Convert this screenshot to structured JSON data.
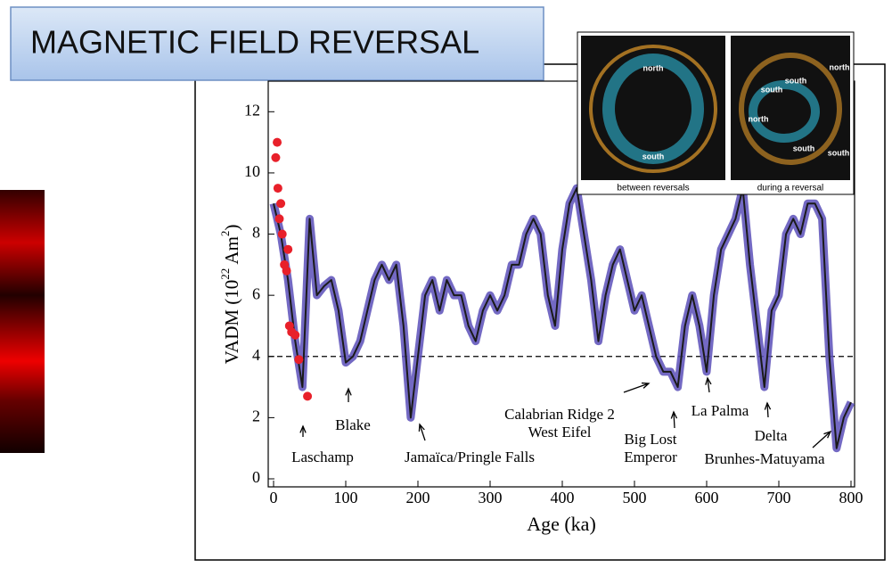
{
  "slide_title": "MAGNETIC FIELD REVERSAL",
  "inset": {
    "labels": [
      "north",
      "south",
      "north",
      "south",
      "south",
      "north",
      "south",
      "south"
    ],
    "captions": [
      "between reversals",
      "during a reversal"
    ]
  },
  "chart_data": {
    "type": "line",
    "x_label": "Age (ka)",
    "y_label": [
      "VADM (10",
      "22",
      " Am",
      "2",
      ")"
    ],
    "xlim": [
      0,
      800
    ],
    "ylim": [
      0,
      13
    ],
    "xticks": [
      0,
      100,
      200,
      300,
      400,
      500,
      600,
      700,
      800
    ],
    "yticks": [
      0,
      2,
      4,
      6,
      8,
      10,
      12
    ],
    "reference_line": 4,
    "x": [
      0,
      10,
      20,
      30,
      40,
      50,
      60,
      70,
      80,
      90,
      100,
      110,
      120,
      130,
      140,
      150,
      160,
      170,
      180,
      190,
      200,
      210,
      220,
      230,
      240,
      250,
      260,
      270,
      280,
      290,
      300,
      310,
      320,
      330,
      340,
      350,
      360,
      370,
      380,
      390,
      400,
      410,
      420,
      430,
      440,
      450,
      460,
      470,
      480,
      490,
      500,
      510,
      520,
      530,
      540,
      550,
      560,
      570,
      580,
      590,
      600,
      610,
      620,
      630,
      640,
      650,
      660,
      670,
      680,
      690,
      700,
      710,
      720,
      730,
      740,
      750,
      760,
      770,
      780,
      790,
      800
    ],
    "series": [
      {
        "color": "#1a1a1a",
        "band_color": "#5b4fb8",
        "values": [
          9,
          8,
          6.5,
          4.5,
          3,
          8.5,
          6,
          6.3,
          6.5,
          5.5,
          3.8,
          4,
          4.5,
          5.5,
          6.5,
          7,
          6.5,
          7,
          5,
          2,
          4,
          6,
          6.5,
          5.5,
          6.5,
          6,
          6,
          5,
          4.5,
          5.5,
          6,
          5.5,
          6,
          7,
          7,
          8,
          8.5,
          8,
          6,
          5,
          7.5,
          9,
          9.5,
          8,
          6.5,
          4.5,
          6,
          7,
          7.5,
          6.5,
          5.5,
          6,
          5,
          4,
          3.5,
          3.5,
          3,
          5,
          6,
          5,
          3.5,
          6,
          7.5,
          8,
          8.5,
          9.5,
          7,
          5,
          3,
          5.5,
          6,
          8,
          8.5,
          8,
          9,
          9,
          8.5,
          4,
          1,
          2,
          2.5
        ]
      }
    ],
    "points": {
      "type": "scatter",
      "color": "#e8202a",
      "x": [
        3,
        5,
        6,
        8,
        10,
        12,
        15,
        18,
        20,
        22,
        25,
        30,
        35,
        47
      ],
      "values": [
        10.5,
        11,
        9.5,
        8.5,
        9,
        8,
        7,
        6.8,
        7.5,
        5,
        4.8,
        4.7,
        3.9,
        2.7
      ]
    },
    "annotations": [
      [
        "Laschamp"
      ],
      [
        "Blake"
      ],
      [
        "Jamaïca/Pringle Falls"
      ],
      [
        "Calabrian Ridge 2",
        "West Eifel"
      ],
      [
        "Big Lost",
        "Emperor"
      ],
      [
        "La Palma"
      ],
      [
        "Delta"
      ],
      [
        "Brunhes-Matuyama"
      ]
    ]
  }
}
